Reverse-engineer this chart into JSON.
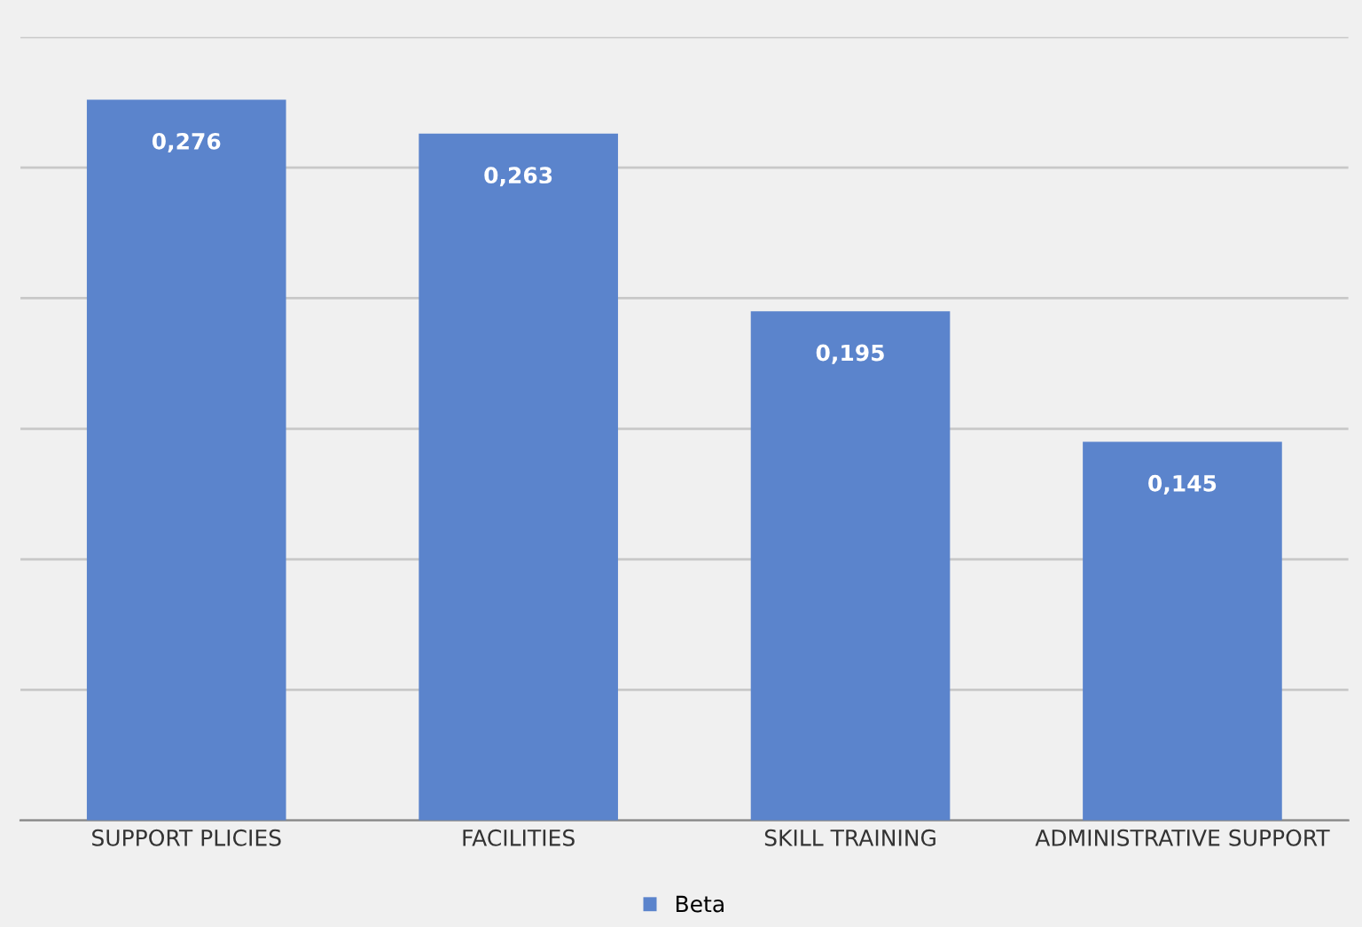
{
  "chart_data": {
    "type": "bar",
    "categories": [
      "SUPPORT PLICIES",
      "FACILITIES",
      "SKILL TRAINING",
      "ADMINISTRATIVE SUPPORT"
    ],
    "series": [
      {
        "name": "Beta",
        "color": "#5b84cc",
        "values": [
          0.276,
          0.263,
          0.195,
          0.145
        ],
        "value_labels": [
          "0,276",
          "0,263",
          "0,195",
          "0,145"
        ]
      }
    ],
    "ylim": [
      0,
      0.3
    ],
    "yticks": [
      {
        "value": 0,
        "label": null
      },
      {
        "value": 0.05,
        "label": null
      },
      {
        "value": 0.1,
        "label": null
      },
      {
        "value": 0.15,
        "label": null
      },
      {
        "value": 0.2,
        "label": null
      },
      {
        "value": 0.25,
        "label": null
      },
      {
        "value": 0.3,
        "label": null
      }
    ],
    "grid": "y",
    "legend": "bottom",
    "tick_labels": "x"
  }
}
